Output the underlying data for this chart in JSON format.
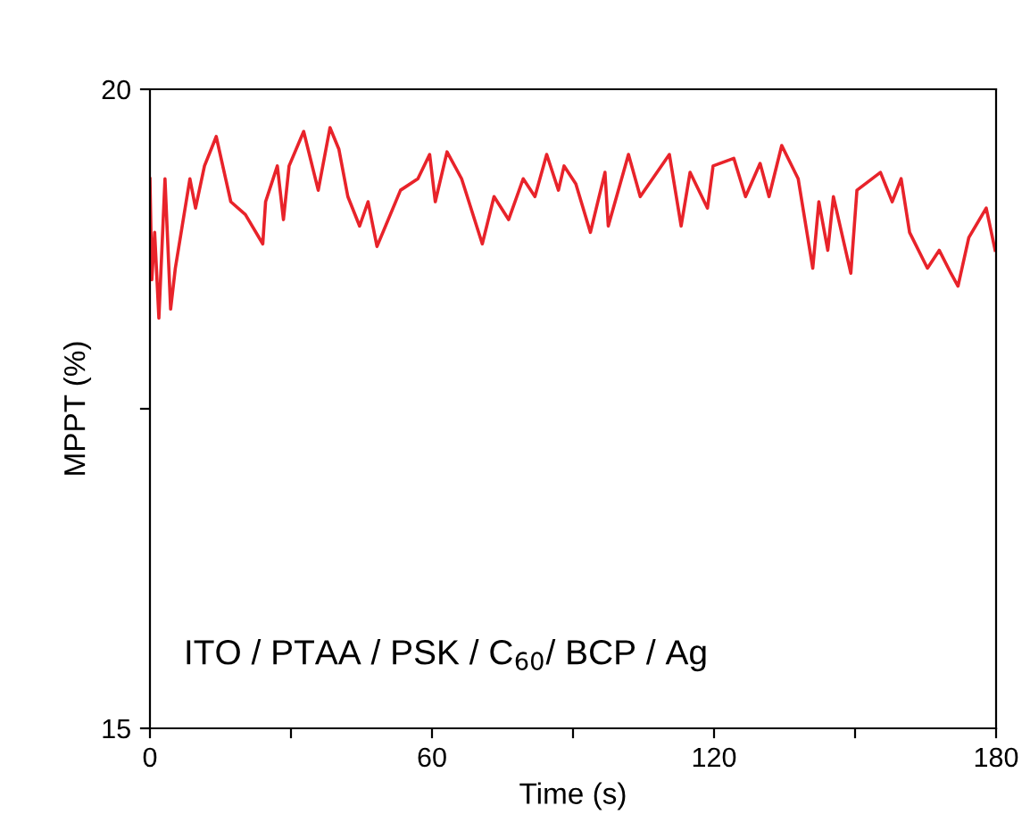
{
  "chart_data": {
    "type": "line",
    "xlabel": "Time (s)",
    "ylabel": "MPPT (%)",
    "annotations": [
      "ITO / PTAA / PSK / C$_{60}$/ BCP / Ag"
    ],
    "xlim": [
      0,
      180
    ],
    "ylim": [
      15,
      20
    ],
    "xticks": [
      0,
      {
        "value": 30,
        "label": null
      },
      60,
      {
        "value": 90,
        "label": null
      },
      120,
      {
        "value": 150,
        "label": null
      },
      180
    ],
    "yticks": [
      15,
      {
        "value": 17.5,
        "label": null
      },
      20
    ],
    "grid": false,
    "marker": "none",
    "line_style": "solid",
    "series": [
      {
        "color": "#e8232a",
        "x": [
          0,
          0.4,
          1.0,
          1.9,
          3.2,
          4.4,
          5.4,
          8.5,
          9.7,
          11.6,
          14.1,
          17.2,
          20.3,
          24.0,
          24.6,
          27.1,
          28.4,
          29.6,
          32.7,
          35.8,
          38.3,
          40.2,
          42.1,
          44.6,
          46.4,
          48.3,
          53.3,
          57.0,
          59.5,
          60.7,
          63.2,
          66.3,
          70.7,
          73.2,
          76.3,
          79.4,
          81.9,
          84.4,
          86.9,
          88.1,
          90.6,
          93.7,
          96.8,
          97.5,
          101.8,
          104.3,
          110.5,
          113.0,
          114.9,
          118.6,
          119.8,
          124.2,
          126.7,
          129.8,
          131.7,
          134.4,
          137.9,
          141.0,
          142.3,
          144.2,
          145.4,
          149.1,
          150.4,
          155.4,
          157.9,
          159.8,
          161.6,
          165.4,
          167.9,
          170.4,
          171.9,
          174.2,
          177.9,
          179.8
        ],
        "values": [
          19.3,
          18.51,
          18.88,
          18.21,
          19.3,
          18.28,
          18.6,
          19.3,
          19.07,
          19.4,
          19.63,
          19.12,
          19.02,
          18.79,
          19.12,
          19.4,
          18.98,
          19.4,
          19.67,
          19.21,
          19.7,
          19.53,
          19.16,
          18.93,
          19.12,
          18.77,
          19.21,
          19.3,
          19.49,
          19.12,
          19.51,
          19.3,
          18.79,
          19.16,
          18.98,
          19.3,
          19.16,
          19.49,
          19.21,
          19.4,
          19.26,
          18.88,
          19.35,
          18.93,
          19.49,
          19.16,
          19.49,
          18.93,
          19.35,
          19.07,
          19.4,
          19.46,
          19.16,
          19.42,
          19.16,
          19.56,
          19.3,
          18.6,
          19.12,
          18.74,
          19.16,
          18.56,
          19.21,
          19.35,
          19.12,
          19.3,
          18.88,
          18.6,
          18.74,
          18.56,
          18.46,
          18.84,
          19.07,
          18.74
        ]
      }
    ]
  }
}
